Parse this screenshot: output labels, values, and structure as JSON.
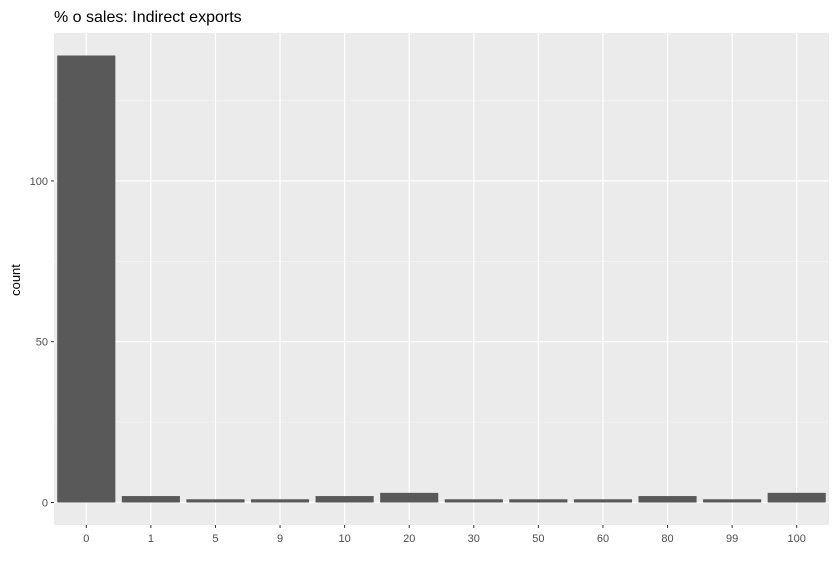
{
  "chart_data": {
    "type": "bar",
    "title": "% o sales: Indirect exports",
    "xlabel": "",
    "ylabel": "count",
    "categories": [
      "0",
      "1",
      "5",
      "9",
      "10",
      "20",
      "30",
      "50",
      "60",
      "80",
      "99",
      "100"
    ],
    "values": [
      139,
      2,
      1,
      1,
      2,
      3,
      1,
      1,
      1,
      2,
      1,
      3
    ],
    "y_ticks": [
      0,
      50,
      100
    ],
    "ylim": [
      -7,
      146
    ],
    "grid": true,
    "legend": "none",
    "colors": {
      "panel_background": "#ebebeb",
      "grid_major": "#ffffff",
      "grid_minor": "#f5f5f5",
      "bar_fill": "#595959",
      "tick_mark": "#333333"
    }
  }
}
